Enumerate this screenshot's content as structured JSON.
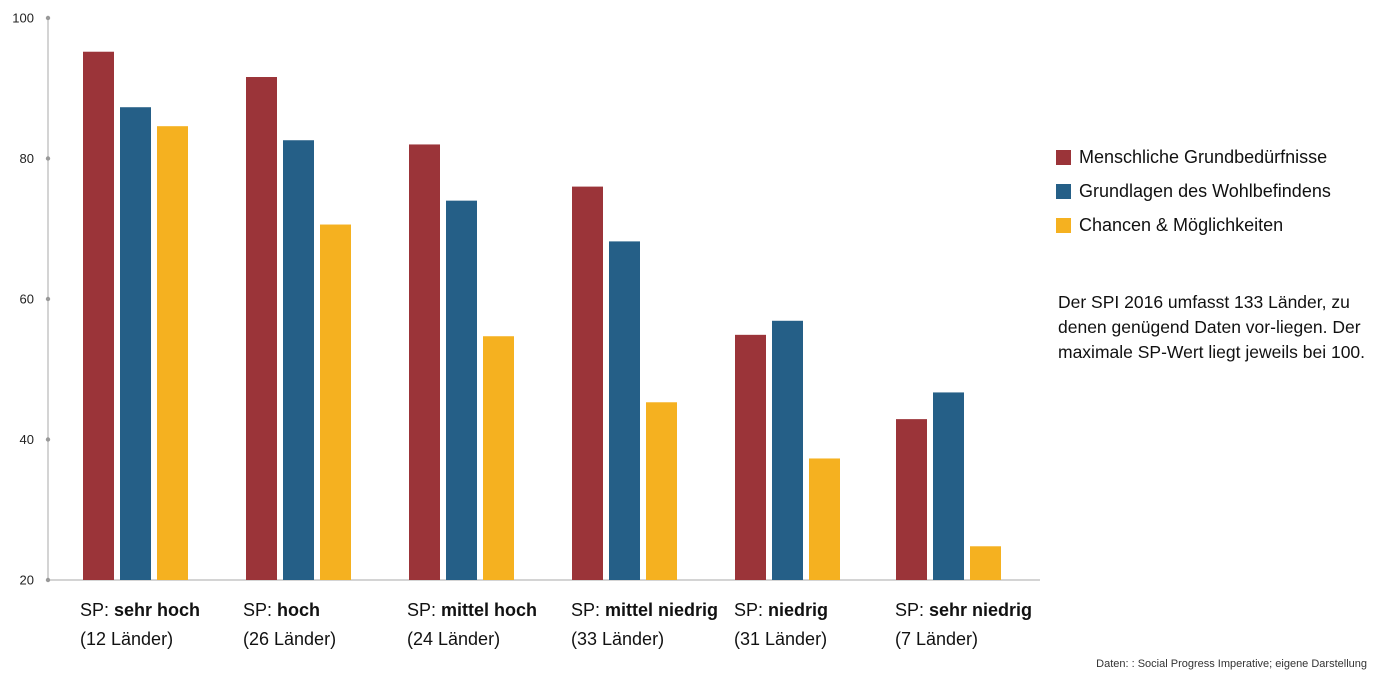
{
  "chart_data": {
    "type": "bar",
    "ylim": [
      20,
      100
    ],
    "yticks": [
      20,
      40,
      60,
      80,
      100
    ],
    "grid": false,
    "legend_position": "right",
    "categories": [
      {
        "prefix": "SP:",
        "label": "sehr hoch",
        "count": "(12 Länder)"
      },
      {
        "prefix": "SP:",
        "label": "hoch",
        "count": "(26 Länder)"
      },
      {
        "prefix": "SP:",
        "label": "mittel hoch",
        "count": "(24 Länder)"
      },
      {
        "prefix": "SP:",
        "label": "mittel niedrig",
        "count": "(33 Länder)"
      },
      {
        "prefix": "SP:",
        "label": "niedrig",
        "count": "(31 Länder)"
      },
      {
        "prefix": "SP:",
        "label": "sehr niedrig",
        "count": "(7 Länder)"
      }
    ],
    "series": [
      {
        "name": "Menschliche Grundbedürfnisse",
        "color": "#9b3439",
        "values": [
          95.2,
          91.6,
          82.0,
          76.0,
          54.9,
          42.9
        ]
      },
      {
        "name": "Grundlagen des Wohlbefindens",
        "color": "#255f87",
        "values": [
          87.3,
          82.6,
          74.0,
          68.2,
          56.9,
          46.7
        ]
      },
      {
        "name": "Chancen & Möglichkeiten",
        "color": "#f5b120",
        "values": [
          84.6,
          70.6,
          54.7,
          45.3,
          37.3,
          24.8
        ]
      }
    ]
  },
  "note": "Der SPI 2016 umfasst 133 Länder, zu denen genügend Daten vor-liegen. Der maximale SP-Wert liegt jeweils bei 100.",
  "source": "Daten: : Social Progress Imperative; eigene Darstellung"
}
